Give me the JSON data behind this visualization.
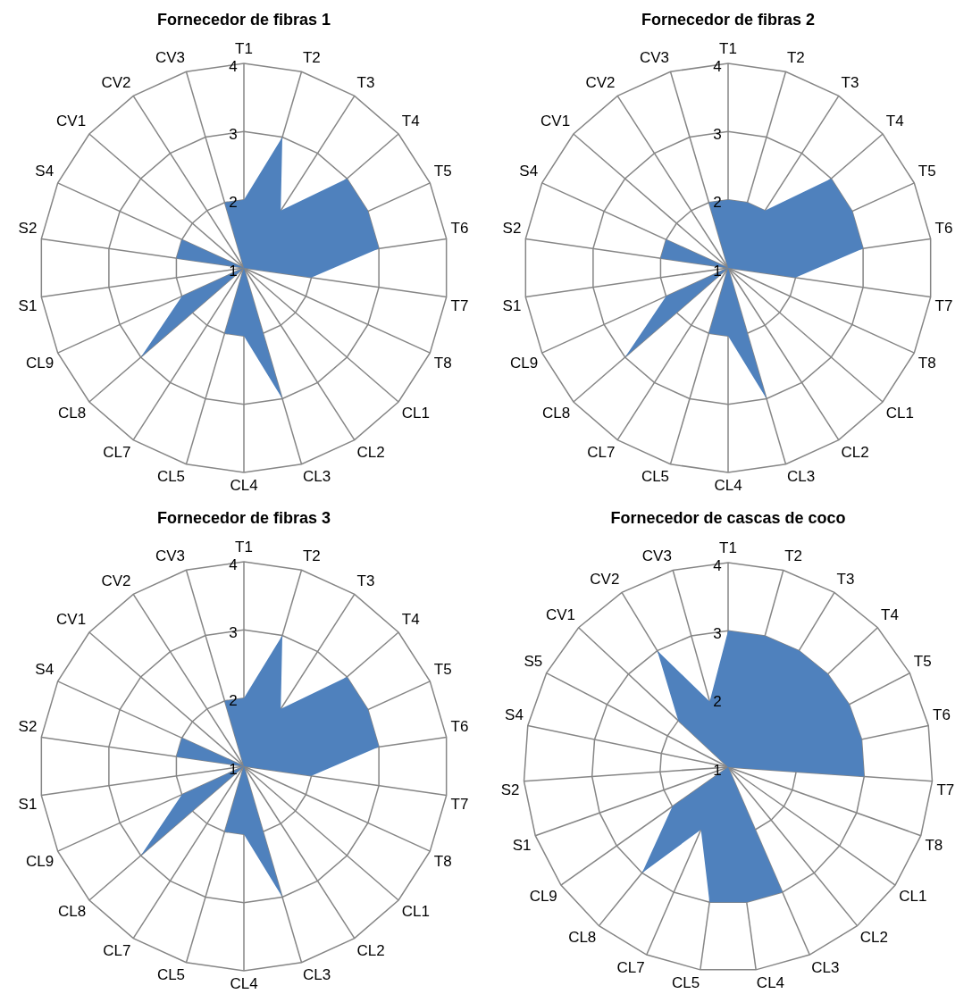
{
  "chart_data": [
    {
      "type": "radar",
      "title": "Fornecedor de fibras 1",
      "categories": [
        "T1",
        "T2",
        "T3",
        "T4",
        "T5",
        "T6",
        "T7",
        "T8",
        "CL1",
        "CL2",
        "CL3",
        "CL4",
        "CL5",
        "CL7",
        "CL8",
        "CL9",
        "S1",
        "S2",
        "S4",
        "CV1",
        "CV2",
        "CV3"
      ],
      "series": [
        {
          "color": "#4f81bd",
          "values": [
            2,
            3,
            2,
            3,
            3,
            3,
            2,
            1,
            1,
            1,
            3,
            2,
            2,
            1,
            3,
            2,
            1,
            2,
            2,
            1,
            1,
            2
          ]
        }
      ],
      "ylim": [
        1,
        4
      ],
      "yticks": [
        1,
        2,
        3,
        4
      ],
      "grid": true
    },
    {
      "type": "radar",
      "title": "Fornecedor de fibras 2",
      "categories": [
        "T1",
        "T2",
        "T3",
        "T4",
        "T5",
        "T6",
        "T7",
        "T8",
        "CL1",
        "CL2",
        "CL3",
        "CL4",
        "CL5",
        "CL7",
        "CL8",
        "CL9",
        "S1",
        "S2",
        "S4",
        "CV1",
        "CV2",
        "CV3"
      ],
      "series": [
        {
          "color": "#4f81bd",
          "values": [
            2,
            2,
            2,
            3,
            3,
            3,
            2,
            1,
            1,
            1,
            3,
            2,
            2,
            1,
            3,
            2,
            1,
            2,
            2,
            1,
            1,
            2
          ]
        }
      ],
      "ylim": [
        1,
        4
      ],
      "yticks": [
        1,
        2,
        3,
        4
      ],
      "grid": true
    },
    {
      "type": "radar",
      "title": "Fornecedor de fibras 3",
      "categories": [
        "T1",
        "T2",
        "T3",
        "T4",
        "T5",
        "T6",
        "T7",
        "T8",
        "CL1",
        "CL2",
        "CL3",
        "CL4",
        "CL5",
        "CL7",
        "CL8",
        "CL9",
        "S1",
        "S2",
        "S4",
        "CV1",
        "CV2",
        "CV3"
      ],
      "series": [
        {
          "color": "#4f81bd",
          "values": [
            2,
            3,
            2,
            3,
            3,
            3,
            2,
            1,
            1,
            1,
            3,
            2,
            2,
            1,
            3,
            2,
            1,
            2,
            2,
            1,
            1,
            2
          ]
        }
      ],
      "ylim": [
        1,
        4
      ],
      "yticks": [
        1,
        2,
        3,
        4
      ],
      "grid": true
    },
    {
      "type": "radar",
      "title": "Fornecedor de cascas de coco",
      "categories": [
        "T1",
        "T2",
        "T3",
        "T4",
        "T5",
        "T6",
        "T7",
        "T8",
        "CL1",
        "CL2",
        "CL3",
        "CL4",
        "CL5",
        "CL7",
        "CL8",
        "CL9",
        "S1",
        "S2",
        "S4",
        "S5",
        "CV1",
        "CV2",
        "CV3"
      ],
      "series": [
        {
          "color": "#4f81bd",
          "values": [
            3,
            3,
            3,
            3,
            3,
            3,
            3,
            1,
            1,
            1,
            3,
            3,
            3,
            2,
            3,
            2,
            1,
            1,
            1,
            1,
            2,
            3,
            2
          ]
        }
      ],
      "ylim": [
        1,
        4
      ],
      "yticks": [
        1,
        2,
        3,
        4
      ],
      "grid": true
    }
  ]
}
